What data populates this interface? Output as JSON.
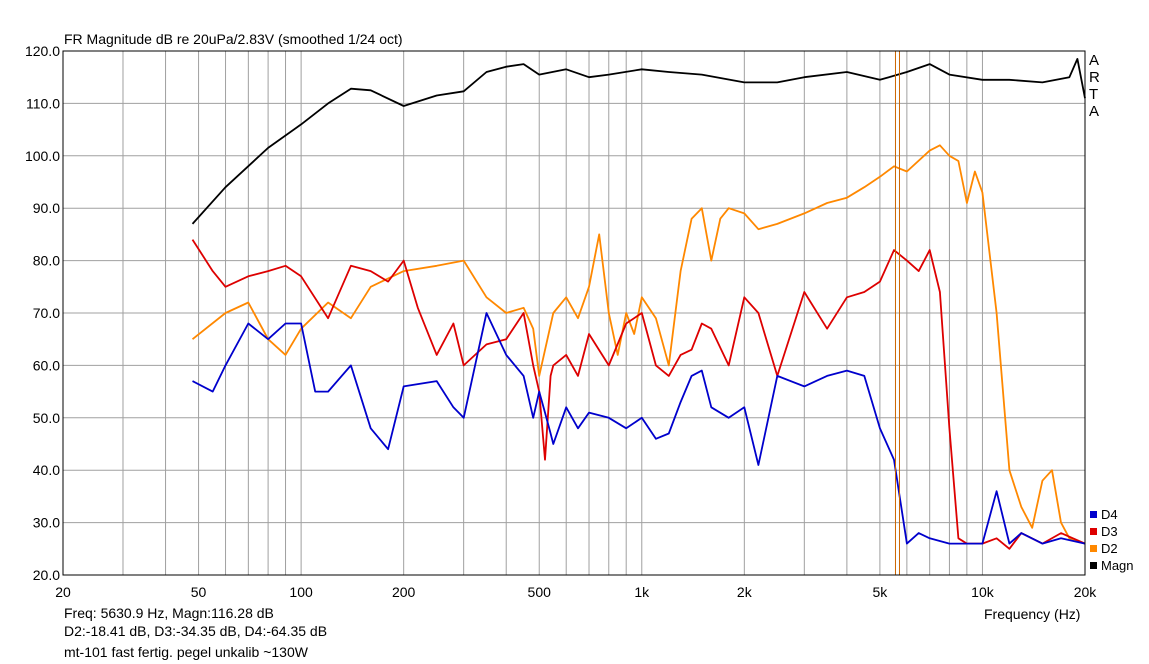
{
  "title": "FR Magnitude dB re 20uPa/2.83V (smoothed 1/24 oct)",
  "logo_letters": [
    "A",
    "R",
    "T",
    "A"
  ],
  "footer": {
    "cursor_line1": "Freq: 5630.9 Hz, Magn:116.28 dB",
    "cursor_line2": "D2:-18.41 dB, D3:-34.35 dB, D4:-64.35 dB",
    "note": "mt-101 fast fertig. pegel unkalib ~130W"
  },
  "colors": {
    "D4": "#0000cc",
    "D3": "#dd0000",
    "D2": "#ff8800",
    "Magn": "#000000",
    "cursor": "#cc6600",
    "grid": "#a0a0a0"
  },
  "chart_data": {
    "type": "line",
    "title": "FR Magnitude dB re 20uPa/2.83V (smoothed 1/24 oct)",
    "xlabel": "Frequency (Hz)",
    "ylabel": "",
    "x_scale": "log",
    "xlim": [
      20,
      20000
    ],
    "ylim": [
      20,
      120
    ],
    "x_ticks": [
      {
        "value": 20,
        "label": "20"
      },
      {
        "value": 50,
        "label": "50"
      },
      {
        "value": 100,
        "label": "100"
      },
      {
        "value": 200,
        "label": "200"
      },
      {
        "value": 500,
        "label": "500"
      },
      {
        "value": 1000,
        "label": "1k"
      },
      {
        "value": 2000,
        "label": "2k"
      },
      {
        "value": 5000,
        "label": "5k"
      },
      {
        "value": 10000,
        "label": "10k"
      },
      {
        "value": 20000,
        "label": "20k"
      }
    ],
    "y_ticks": [
      "20.0",
      "30.0",
      "40.0",
      "50.0",
      "60.0",
      "70.0",
      "80.0",
      "90.0",
      "100.0",
      "110.0",
      "120.0"
    ],
    "grid": true,
    "legend_position": "right-bottom",
    "cursor_freq": 5630.9,
    "series": [
      {
        "name": "Magn",
        "x": [
          48,
          60,
          80,
          100,
          120,
          140,
          160,
          200,
          250,
          300,
          350,
          400,
          450,
          500,
          600,
          700,
          800,
          1000,
          1200,
          1500,
          2000,
          2500,
          3000,
          4000,
          5000,
          6000,
          7000,
          8000,
          10000,
          12000,
          15000,
          18000,
          19000,
          20000
        ],
        "y": [
          87,
          94,
          101.5,
          106,
          110,
          112.8,
          112.5,
          109.5,
          111.5,
          112.3,
          116,
          117,
          117.5,
          115.5,
          116.5,
          115,
          115.5,
          116.5,
          116,
          115.5,
          114,
          114,
          115,
          116,
          114.5,
          116,
          117.5,
          115.5,
          114.5,
          114.5,
          114,
          115,
          118.5,
          111
        ]
      },
      {
        "name": "D2",
        "x": [
          48,
          60,
          70,
          80,
          90,
          100,
          120,
          140,
          160,
          200,
          250,
          300,
          350,
          400,
          450,
          480,
          500,
          550,
          600,
          650,
          700,
          750,
          800,
          850,
          900,
          950,
          1000,
          1100,
          1200,
          1300,
          1400,
          1500,
          1600,
          1700,
          1800,
          2000,
          2200,
          2500,
          3000,
          3500,
          4000,
          4500,
          5000,
          5500,
          6000,
          7000,
          7500,
          8000,
          8500,
          9000,
          9500,
          10000,
          11000,
          12000,
          13000,
          14000,
          15000,
          16000,
          17000,
          18000,
          20000
        ],
        "y": [
          65,
          70,
          72,
          65,
          62,
          67,
          72,
          69,
          75,
          78,
          79,
          80,
          73,
          70,
          71,
          67,
          58,
          70,
          73,
          69,
          75,
          85,
          70,
          62,
          70,
          66,
          73,
          69,
          60,
          78,
          88,
          90,
          80,
          88,
          90,
          89,
          86,
          87,
          89,
          91,
          92,
          94,
          96,
          98,
          97,
          101,
          102,
          100,
          99,
          91,
          97,
          93,
          70,
          40,
          33,
          29,
          38,
          40,
          30,
          27,
          26
        ]
      },
      {
        "name": "D3",
        "x": [
          48,
          55,
          60,
          70,
          80,
          90,
          100,
          120,
          140,
          160,
          180,
          200,
          220,
          250,
          280,
          300,
          350,
          400,
          450,
          480,
          500,
          520,
          540,
          550,
          600,
          650,
          700,
          800,
          900,
          1000,
          1100,
          1200,
          1300,
          1400,
          1500,
          1600,
          1800,
          2000,
          2200,
          2500,
          3000,
          3500,
          4000,
          4500,
          5000,
          5500,
          6000,
          6500,
          7000,
          7500,
          8000,
          8500,
          9000,
          10000,
          11000,
          12000,
          13000,
          15000,
          17000,
          20000
        ],
        "y": [
          84,
          78,
          75,
          77,
          78,
          79,
          77,
          69,
          79,
          78,
          76,
          80,
          71,
          62,
          68,
          60,
          64,
          65,
          70,
          60,
          55,
          42,
          58,
          60,
          62,
          58,
          66,
          60,
          68,
          70,
          60,
          58,
          62,
          63,
          68,
          67,
          60,
          73,
          70,
          58,
          74,
          67,
          73,
          74,
          76,
          82,
          80,
          78,
          82,
          74,
          48,
          27,
          26,
          26,
          27,
          25,
          28,
          26,
          28,
          26
        ]
      },
      {
        "name": "D4",
        "x": [
          48,
          55,
          60,
          70,
          80,
          90,
          100,
          110,
          120,
          140,
          160,
          180,
          200,
          250,
          280,
          300,
          350,
          400,
          450,
          480,
          500,
          520,
          540,
          550,
          600,
          650,
          700,
          800,
          900,
          1000,
          1100,
          1200,
          1300,
          1400,
          1500,
          1600,
          1800,
          2000,
          2200,
          2500,
          3000,
          3500,
          4000,
          4500,
          5000,
          5500,
          6000,
          6500,
          7000,
          8000,
          9000,
          10000,
          11000,
          12000,
          13000,
          15000,
          17000,
          20000
        ],
        "y": [
          57,
          55,
          60,
          68,
          65,
          68,
          68,
          55,
          55,
          60,
          48,
          44,
          56,
          57,
          52,
          50,
          70,
          62,
          58,
          50,
          55,
          51,
          47,
          45,
          52,
          48,
          51,
          50,
          48,
          50,
          46,
          47,
          53,
          58,
          59,
          52,
          50,
          52,
          41,
          58,
          56,
          58,
          59,
          58,
          48,
          42,
          26,
          28,
          27,
          26,
          26,
          26,
          36,
          26,
          28,
          26,
          27,
          26
        ]
      }
    ]
  }
}
